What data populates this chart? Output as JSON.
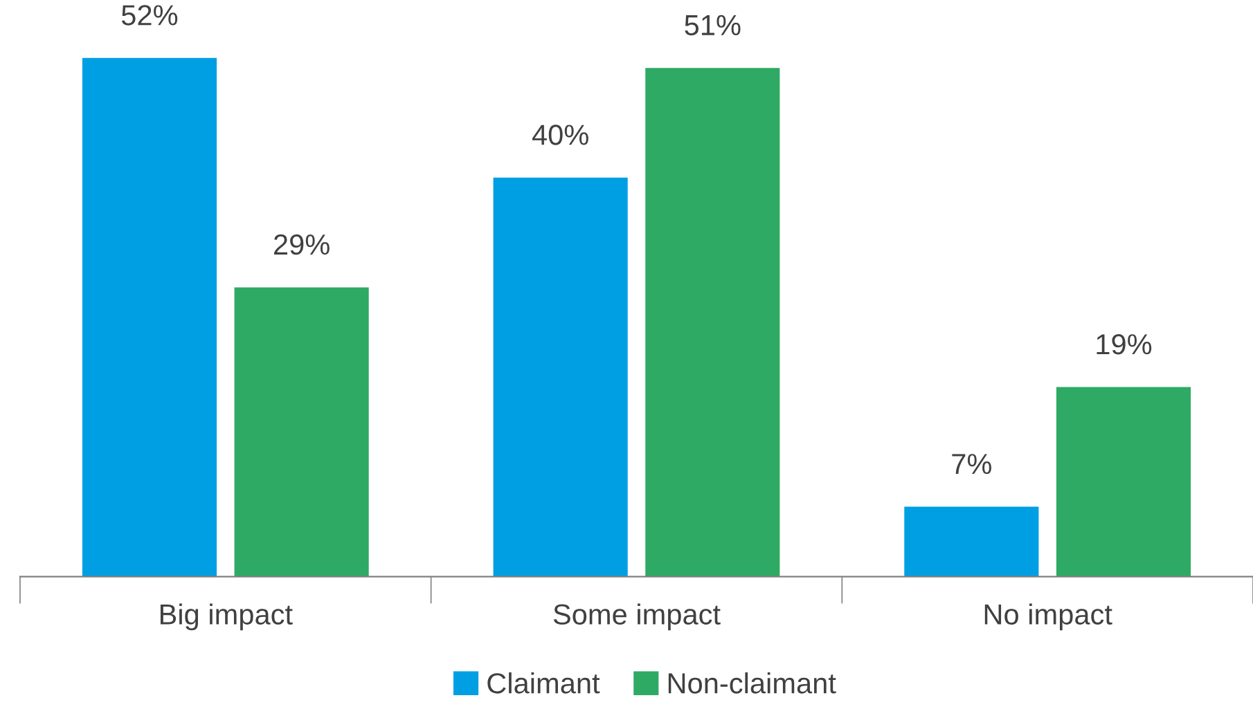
{
  "chart_data": {
    "type": "bar",
    "categories": [
      "Big impact",
      "Some impact",
      "No impact"
    ],
    "series": [
      {
        "name": "Claimant",
        "color": "#009fe3",
        "values": [
          52,
          40,
          7
        ],
        "value_labels": [
          "52%",
          "40%",
          "7%"
        ]
      },
      {
        "name": "Non-claimant",
        "color": "#2eaa65",
        "values": [
          29,
          51,
          19
        ],
        "value_labels": [
          "29%",
          "51%",
          "19%"
        ]
      }
    ],
    "legend": "bottom",
    "grid": false
  }
}
